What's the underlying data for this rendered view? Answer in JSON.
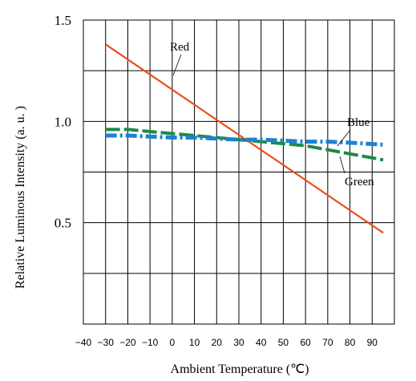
{
  "chart_data": {
    "type": "line",
    "xlabel": "Ambient Temperature (℃)",
    "ylabel": "Relative Luminous Intensity (a. u. )",
    "xlim": [
      -40,
      100
    ],
    "ylim": [
      0,
      1.5
    ],
    "x_ticks": [
      {
        "value": -40,
        "label": "−40"
      },
      {
        "value": -30,
        "label": "−30"
      },
      {
        "value": -20,
        "label": "−20"
      },
      {
        "value": -10,
        "label": "−10"
      },
      {
        "value": 0,
        "label": "0"
      },
      {
        "value": 10,
        "label": "10"
      },
      {
        "value": 20,
        "label": "20"
      },
      {
        "value": 30,
        "label": "30"
      },
      {
        "value": 40,
        "label": "40"
      },
      {
        "value": 50,
        "label": "50"
      },
      {
        "value": 60,
        "label": "60"
      },
      {
        "value": 70,
        "label": "70"
      },
      {
        "value": 80,
        "label": "80"
      },
      {
        "value": 90,
        "label": "90"
      }
    ],
    "y_ticks": [
      {
        "value": 1.5,
        "label": "1.5"
      },
      {
        "value": 1.0,
        "label": "1.0"
      },
      {
        "value": 0.5,
        "label": "0.5"
      }
    ],
    "grid": true,
    "series": [
      {
        "name": "Red",
        "color": "#e8501e",
        "style": "solid",
        "x": [
          -30,
          95
        ],
        "y": [
          1.38,
          0.45
        ]
      },
      {
        "name": "Green",
        "color": "#1e8a46",
        "style": "dashed",
        "x": [
          -30,
          -20,
          -10,
          0,
          10,
          20,
          30,
          40,
          50,
          60,
          70,
          80,
          95
        ],
        "y": [
          0.96,
          0.96,
          0.95,
          0.94,
          0.93,
          0.92,
          0.91,
          0.9,
          0.89,
          0.88,
          0.86,
          0.84,
          0.81
        ]
      },
      {
        "name": "Blue",
        "color": "#1e82d2",
        "style": "dash-dot",
        "x": [
          -30,
          -20,
          -10,
          0,
          10,
          20,
          30,
          40,
          50,
          60,
          70,
          80,
          95
        ],
        "y": [
          0.93,
          0.93,
          0.925,
          0.92,
          0.92,
          0.915,
          0.91,
          0.91,
          0.905,
          0.9,
          0.9,
          0.895,
          0.885
        ]
      }
    ]
  }
}
